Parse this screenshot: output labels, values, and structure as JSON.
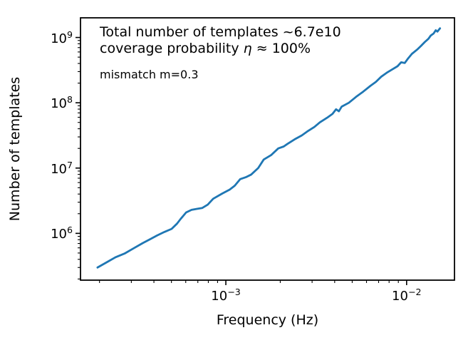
{
  "figure": {
    "xlabel": "Frequency (Hz)",
    "ylabel": "Number of templates",
    "annotations": {
      "line1": "Total number of templates ~6.7e10",
      "line2_pre": "coverage probability ",
      "line2_eta": "η",
      "line2_post": " ≈ 100%",
      "line3": "mismatch m=0.3"
    }
  },
  "chart_data": {
    "type": "line",
    "title": "",
    "xlabel": "Frequency (Hz)",
    "ylabel": "Number of templates",
    "xscale": "log",
    "yscale": "log",
    "grid": false,
    "legend": "none",
    "xlim": [
      0.000157,
      0.0184
    ],
    "ylim": [
      192000.0,
      2000000000.0
    ],
    "x_ticks": [
      {
        "base": "10",
        "exp": "−3",
        "value": 0.001
      },
      {
        "base": "10",
        "exp": "−2",
        "value": 0.01
      }
    ],
    "y_ticks": [
      {
        "base": "10",
        "exp": "6",
        "value": 1000000.0
      },
      {
        "base": "10",
        "exp": "7",
        "value": 10000000.0
      },
      {
        "base": "10",
        "exp": "8",
        "value": 100000000.0
      },
      {
        "base": "10",
        "exp": "9",
        "value": 1000000000.0
      }
    ],
    "frame_color": "#000000",
    "line_color": "#1f77b4",
    "line_width": 2.8,
    "annotations_text": [
      "Total number of templates ~6.7e10",
      "coverage probability η ≈ 100%",
      "mismatch m=0.3"
    ],
    "series": [
      {
        "name": "number-of-templates-vs-frequency",
        "points": [
          [
            0.000195,
            300000.0
          ],
          [
            0.000219,
            360000.0
          ],
          [
            0.000245,
            430000.0
          ],
          [
            0.000275,
            490000.0
          ],
          [
            0.000309,
            590000.0
          ],
          [
            0.000347,
            710000.0
          ],
          [
            0.00038,
            810000.0
          ],
          [
            0.000417,
            930000.0
          ],
          [
            0.000457,
            1050000.0
          ],
          [
            0.000501,
            1170000.0
          ],
          [
            0.000537,
            1410000.0
          ],
          [
            0.000562,
            1660000.0
          ],
          [
            0.000603,
            2090000.0
          ],
          [
            0.000646,
            2290000.0
          ],
          [
            0.000692,
            2370000.0
          ],
          [
            0.000741,
            2450000.0
          ],
          [
            0.000794,
            2750000.0
          ],
          [
            0.000851,
            3390000.0
          ],
          [
            0.000955,
            4070000.0
          ],
          [
            0.00105,
            4680000.0
          ],
          [
            0.00112,
            5370000.0
          ],
          [
            0.0012,
            6760000.0
          ],
          [
            0.00129,
            7240000.0
          ],
          [
            0.00138,
            7940000.0
          ],
          [
            0.00151,
            10000000.0
          ],
          [
            0.00162,
            13500000.0
          ],
          [
            0.00178,
            15800000.0
          ],
          [
            0.00195,
            20000000.0
          ],
          [
            0.00209,
            21400000.0
          ],
          [
            0.00219,
            23400000.0
          ],
          [
            0.0024,
            27500000.0
          ],
          [
            0.00263,
            31600000.0
          ],
          [
            0.00282,
            36300000.0
          ],
          [
            0.00309,
            42700000.0
          ],
          [
            0.00331,
            50100000.0
          ],
          [
            0.00363,
            58900000.0
          ],
          [
            0.00389,
            67600000.0
          ],
          [
            0.00407,
            79400000.0
          ],
          [
            0.00422,
            74100000.0
          ],
          [
            0.00437,
            87100000.0
          ],
          [
            0.00479,
            100000000.0
          ],
          [
            0.00525,
            123000000.0
          ],
          [
            0.00575,
            148000000.0
          ],
          [
            0.00631,
            182000000.0
          ],
          [
            0.00676,
            209000000.0
          ],
          [
            0.00724,
            251000000.0
          ],
          [
            0.00776,
            288000000.0
          ],
          [
            0.00832,
            324000000.0
          ],
          [
            0.00891,
            363000000.0
          ],
          [
            0.00933,
            417000000.0
          ],
          [
            0.00977,
            407000000.0
          ],
          [
            0.0102,
            479000000.0
          ],
          [
            0.0107,
            562000000.0
          ],
          [
            0.0115,
            661000000.0
          ],
          [
            0.012,
            741000000.0
          ],
          [
            0.0126,
            851000000.0
          ],
          [
            0.0132,
            955000000.0
          ],
          [
            0.0136,
            1070000000.0
          ],
          [
            0.0141,
            1150000000.0
          ],
          [
            0.0145,
            1290000000.0
          ],
          [
            0.0148,
            1230000000.0
          ],
          [
            0.0153,
            1380000000.0
          ]
        ]
      }
    ]
  }
}
